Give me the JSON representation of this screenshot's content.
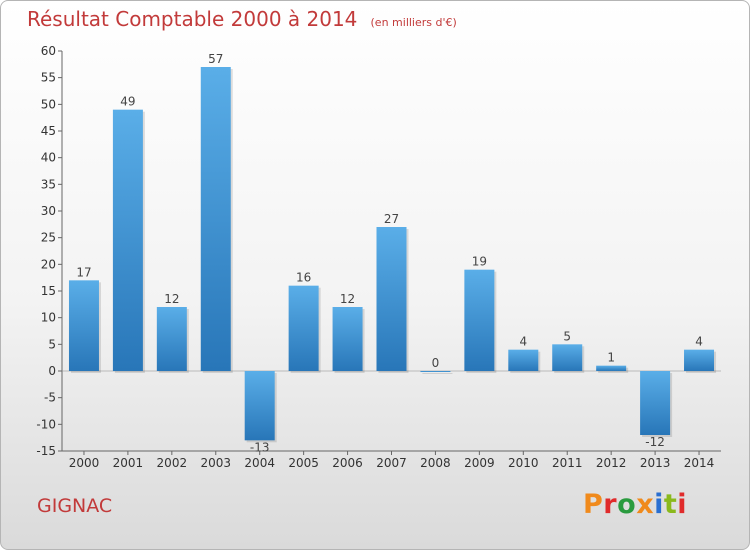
{
  "header": {
    "title": "Résultat Comptable 2000 à 2014",
    "subtitle": "(en milliers d'€)"
  },
  "footer": {
    "commune": "GIGNAC",
    "brand": "Proxiti"
  },
  "colors": {
    "bar_top": "#5aaee8",
    "bar_bottom": "#2876b8",
    "title": "#c23a3a",
    "brand_letters": [
      "#f08a1c",
      "#e02b2b",
      "#2a9b3f",
      "#f08a1c",
      "#2a6fd1",
      "#8ab91c",
      "#e02b2b"
    ]
  },
  "chart_data": {
    "type": "bar",
    "categories": [
      "2000",
      "2001",
      "2002",
      "2003",
      "2004",
      "2005",
      "2006",
      "2007",
      "2008",
      "2009",
      "2010",
      "2011",
      "2012",
      "2013",
      "2014"
    ],
    "values": [
      17,
      49,
      12,
      57,
      -13,
      16,
      12,
      27,
      0,
      19,
      4,
      5,
      1,
      -12,
      4
    ],
    "data_labels": [
      "17",
      "49",
      "12",
      "57",
      "-13",
      "16",
      "12",
      "27",
      "0",
      "19",
      "4",
      "5",
      "1",
      "-12",
      "4"
    ],
    "ylim": [
      -15,
      60
    ],
    "yticks": [
      60,
      55,
      50,
      45,
      40,
      35,
      30,
      25,
      20,
      15,
      10,
      5,
      0,
      -5,
      -10,
      -15
    ],
    "grid": false,
    "xlabel": "",
    "ylabel": ""
  }
}
